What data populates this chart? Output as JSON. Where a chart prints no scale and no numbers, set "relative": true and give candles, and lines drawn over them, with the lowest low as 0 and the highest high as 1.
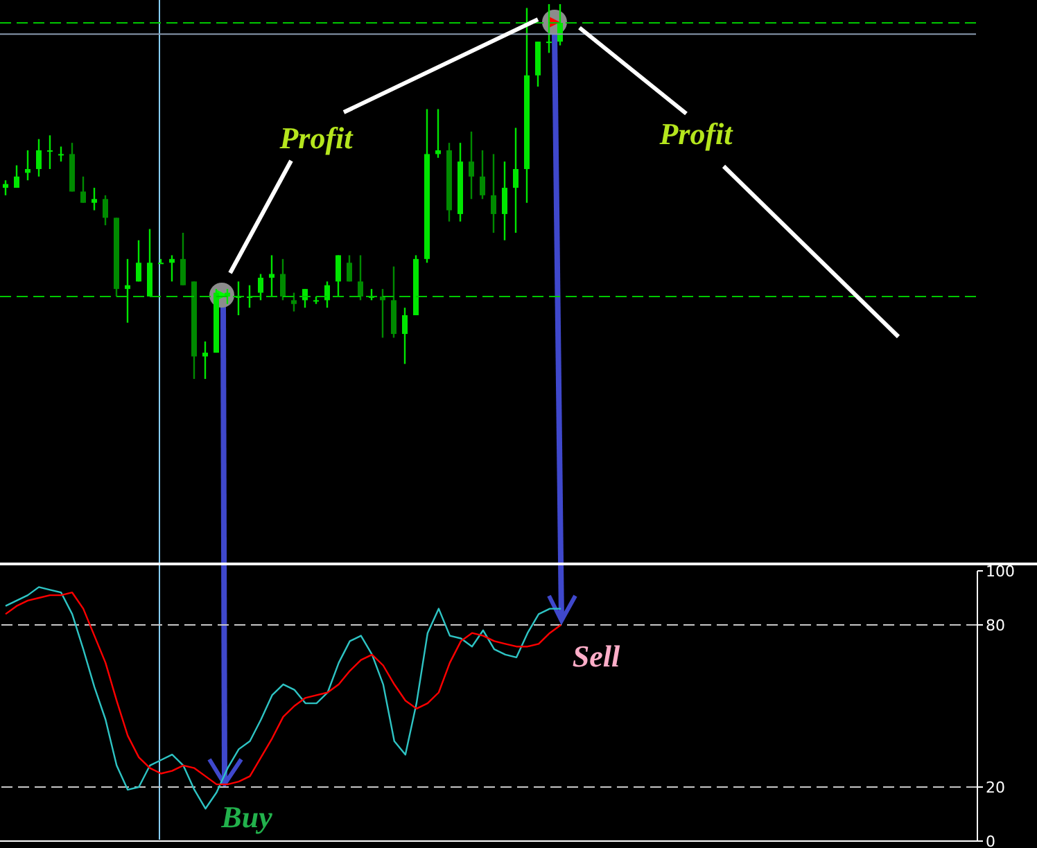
{
  "chart_data": [
    {
      "type": "candlestick",
      "relative": true,
      "tick_labels": false,
      "colors": [
        "#00e600",
        "#00e600",
        "#00e600",
        "#00e600",
        "#00e600",
        "#00e600",
        "#008a00",
        "#008a00",
        "#00e600",
        "#008a00",
        "#008a00",
        "#00e600",
        "#00e600",
        "#00e600",
        "#00e600",
        "#00e600",
        "#008a00",
        "#008a00",
        "#00e600",
        "#00e600",
        "#00e600",
        "#00e600",
        "#00e600",
        "#00e600",
        "#00e600",
        "#008a00",
        "#008a00",
        "#00e600",
        "#00e600",
        "#00e600",
        "#00e600",
        "#008a00",
        "#008a00",
        "#00e600",
        "#008a00",
        "#008a00",
        "#00e600",
        "#00e600",
        "#00e600",
        "#00e600",
        "#008a00",
        "#00e600",
        "#008a00",
        "#008a00",
        "#008a00",
        "#00e600",
        "#00e600",
        "#00e600",
        "#00e600",
        "#00e600",
        "#00e600"
      ],
      "categories": [
        null,
        null,
        null,
        null,
        null,
        null,
        null,
        null,
        null,
        null,
        null,
        null,
        null,
        null,
        null,
        null,
        null,
        null,
        null,
        null,
        null,
        null,
        null,
        null,
        null,
        null,
        null,
        null,
        null,
        null,
        null,
        null,
        null,
        null,
        null,
        null,
        null,
        null,
        null,
        null,
        null,
        null,
        null,
        null,
        null,
        null,
        null,
        null,
        null,
        null,
        null
      ],
      "ohlc": [
        [
          0.51,
          0.53,
          0.49,
          0.52
        ],
        [
          0.51,
          0.57,
          0.51,
          0.54
        ],
        [
          0.55,
          0.61,
          0.53,
          0.56
        ],
        [
          0.56,
          0.64,
          0.54,
          0.61
        ],
        [
          0.61,
          0.65,
          0.56,
          0.61
        ],
        [
          0.6,
          0.62,
          0.58,
          0.6
        ],
        [
          0.6,
          0.63,
          0.5,
          0.5
        ],
        [
          0.5,
          0.54,
          0.47,
          0.47
        ],
        [
          0.47,
          0.51,
          0.45,
          0.48
        ],
        [
          0.48,
          0.49,
          0.41,
          0.43
        ],
        [
          0.43,
          0.43,
          0.22,
          0.24
        ],
        [
          0.24,
          0.32,
          0.15,
          0.25
        ],
        [
          0.26,
          0.37,
          0.26,
          0.31
        ],
        [
          0.22,
          0.4,
          0.22,
          0.31
        ],
        [
          0.31,
          0.32,
          0.31,
          0.31
        ],
        [
          0.31,
          0.33,
          0.26,
          0.32
        ],
        [
          0.32,
          0.39,
          0.25,
          0.25
        ],
        [
          0.26,
          0.26,
          0.0,
          0.06
        ],
        [
          0.06,
          0.1,
          0.0,
          0.07
        ],
        [
          0.07,
          0.24,
          0.07,
          0.23
        ],
        [
          0.22,
          0.24,
          0.2,
          0.23
        ],
        [
          0.22,
          0.26,
          0.17,
          0.22
        ],
        [
          0.22,
          0.25,
          0.19,
          0.22
        ],
        [
          0.23,
          0.28,
          0.21,
          0.27
        ],
        [
          0.27,
          0.33,
          0.22,
          0.28
        ],
        [
          0.28,
          0.32,
          0.21,
          0.22
        ],
        [
          0.21,
          0.23,
          0.18,
          0.2
        ],
        [
          0.21,
          0.24,
          0.19,
          0.24
        ],
        [
          0.21,
          0.22,
          0.2,
          0.21
        ],
        [
          0.21,
          0.26,
          0.19,
          0.25
        ],
        [
          0.26,
          0.33,
          0.22,
          0.33
        ],
        [
          0.31,
          0.33,
          0.26,
          0.26
        ],
        [
          0.26,
          0.33,
          0.21,
          0.22
        ],
        [
          0.22,
          0.24,
          0.21,
          0.22
        ],
        [
          0.22,
          0.24,
          0.11,
          0.21
        ],
        [
          0.21,
          0.3,
          0.11,
          0.12
        ],
        [
          0.12,
          0.19,
          0.04,
          0.17
        ],
        [
          0.17,
          0.33,
          0.17,
          0.32
        ],
        [
          0.32,
          0.72,
          0.31,
          0.6
        ],
        [
          0.6,
          0.72,
          0.59,
          0.61
        ],
        [
          0.61,
          0.63,
          0.42,
          0.45
        ],
        [
          0.44,
          0.63,
          0.42,
          0.58
        ],
        [
          0.58,
          0.66,
          0.48,
          0.54
        ],
        [
          0.54,
          0.61,
          0.48,
          0.49
        ],
        [
          0.49,
          0.6,
          0.39,
          0.44
        ],
        [
          0.44,
          0.58,
          0.37,
          0.51
        ],
        [
          0.51,
          0.67,
          0.39,
          0.56
        ],
        [
          0.56,
          0.99,
          0.47,
          0.81
        ],
        [
          0.81,
          0.9,
          0.78,
          0.9
        ],
        [
          0.9,
          1.0,
          0.87,
          0.9
        ],
        [
          0.9,
          1.0,
          0.89,
          0.95
        ]
      ],
      "ref_lines": [
        {
          "axis": "y",
          "value": 0.95,
          "color": "#00c800",
          "line_style": "dashed"
        },
        {
          "axis": "y",
          "value": 0.92,
          "color": "#8a9bb0",
          "line_style": "solid"
        },
        {
          "axis": "y",
          "value": 0.22,
          "color": "#00c800",
          "line_style": "dashed"
        }
      ],
      "annotations": [
        "Profit",
        "Profit"
      ]
    },
    {
      "type": "line",
      "marker": "none",
      "tick_labels": "y",
      "categories": [
        null,
        null,
        null,
        null,
        null,
        null,
        null,
        null,
        null,
        null,
        null,
        null,
        null,
        null,
        null,
        null,
        null,
        null,
        null,
        null,
        null,
        null,
        null,
        null,
        null,
        null,
        null,
        null,
        null,
        null,
        null,
        null,
        null,
        null,
        null,
        null,
        null,
        null,
        null,
        null,
        null,
        null,
        null,
        null,
        null,
        null,
        null,
        null,
        null,
        null,
        null
      ],
      "series": [
        {
          "color": "#2ec4c4",
          "values": [
            87,
            89,
            91,
            94,
            93,
            92,
            84,
            71,
            57,
            45,
            28,
            19,
            20,
            28,
            30,
            32,
            28,
            19,
            12,
            18,
            27,
            34,
            37,
            45,
            54,
            58,
            56,
            51,
            51,
            55,
            66,
            74,
            76,
            69,
            58,
            37,
            32,
            51,
            77,
            86,
            76,
            75,
            72,
            78,
            71,
            69,
            68,
            77,
            84,
            86,
            86
          ]
        },
        {
          "color": "#ff0000",
          "values": [
            84,
            87,
            89,
            90,
            91,
            91,
            92,
            86,
            76,
            66,
            52,
            39,
            31,
            27,
            25,
            26,
            28,
            27,
            24,
            21,
            21,
            22,
            24,
            31,
            38,
            46,
            50,
            53,
            54,
            55,
            58,
            63,
            67,
            69,
            65,
            58,
            52,
            49,
            51,
            55,
            66,
            74,
            77,
            76,
            74,
            73,
            72,
            72,
            73,
            77,
            80
          ]
        }
      ],
      "ylim": [
        0,
        100
      ],
      "yticks": [
        0,
        20,
        80,
        100
      ],
      "ref_lines": [
        {
          "axis": "y",
          "value": 80,
          "color": "#c8c8c8",
          "line_style": "dashed"
        },
        {
          "axis": "y",
          "value": 20,
          "color": "#c8c8c8",
          "line_style": "dashed"
        }
      ],
      "annotations": [
        "Buy",
        "Sell"
      ]
    }
  ]
}
